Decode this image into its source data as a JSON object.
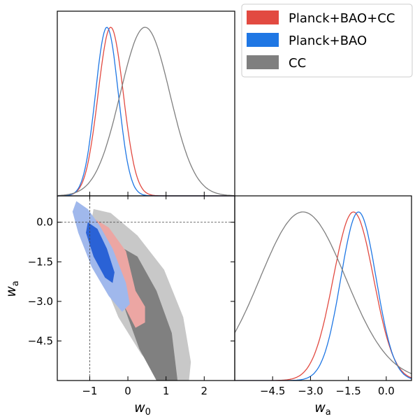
{
  "chart_data": {
    "type": "triangle-corner-plot",
    "legend": {
      "placement": "top-right",
      "entries": [
        {
          "name": "Planck+BAO+CC",
          "color": "#e24a41"
        },
        {
          "name": "Planck+BAO",
          "color": "#1f77e4"
        },
        {
          "name": "CC",
          "color": "#7f7f7f"
        }
      ]
    },
    "parameters": {
      "w0": {
        "label": "w",
        "sub": "0",
        "range": [
          -1.85,
          2.8
        ],
        "ticks": [
          -1,
          0,
          1,
          2
        ],
        "tick_labels": [
          "−1",
          "0",
          "1",
          "2"
        ]
      },
      "wa": {
        "label": "w",
        "sub": "a",
        "range": [
          -6.0,
          1.0
        ],
        "ticks": [
          0.0,
          -1.5,
          -3.0,
          -4.5
        ],
        "tick_labels": [
          "0.0",
          "−1.5",
          "−3.0",
          "−4.5"
        ]
      }
    },
    "reference_lines": {
      "w0": -1,
      "wa": 0
    },
    "marginals": {
      "w0": [
        {
          "series": "Planck+BAO+CC",
          "mean": -0.45,
          "sigma": 0.33
        },
        {
          "series": "Planck+BAO",
          "mean": -0.55,
          "sigma": 0.3
        },
        {
          "series": "CC",
          "mean": 0.45,
          "sigma": 0.65
        }
      ],
      "wa": [
        {
          "series": "Planck+BAO+CC",
          "mean": -1.3,
          "sigma": 0.8
        },
        {
          "series": "Planck+BAO",
          "mean": -1.1,
          "sigma": 0.7
        },
        {
          "series": "CC",
          "mean": -3.3,
          "sigma": 1.7
        }
      ]
    },
    "contours": [
      {
        "series": "CC",
        "level": "95%",
        "points": [
          [
            -0.9,
            0.5
          ],
          [
            -0.45,
            0.35
          ],
          [
            0.25,
            -0.5
          ],
          [
            0.95,
            -1.8
          ],
          [
            1.45,
            -3.6
          ],
          [
            1.65,
            -5.3
          ],
          [
            1.6,
            -6.0
          ],
          [
            0.95,
            -6.0
          ],
          [
            0.35,
            -5.0
          ],
          [
            -0.25,
            -3.6
          ],
          [
            -0.7,
            -2.0
          ],
          [
            -1.0,
            -0.3
          ]
        ]
      },
      {
        "series": "CC",
        "level": "68%",
        "points": [
          [
            -0.35,
            -0.8
          ],
          [
            0.25,
            -1.3
          ],
          [
            0.75,
            -2.6
          ],
          [
            1.15,
            -4.2
          ],
          [
            1.3,
            -6.0
          ],
          [
            0.75,
            -6.0
          ],
          [
            0.3,
            -4.8
          ],
          [
            -0.05,
            -3.4
          ],
          [
            -0.35,
            -2.0
          ],
          [
            -0.45,
            -1.1
          ]
        ]
      },
      {
        "series": "Planck+BAO+CC",
        "level": "95%",
        "points": [
          [
            -1.35,
            0.7
          ],
          [
            -0.95,
            0.2
          ],
          [
            -0.5,
            -0.2
          ],
          [
            -0.05,
            -1.1
          ],
          [
            0.2,
            -2.6
          ],
          [
            0.45,
            -3.2
          ],
          [
            0.45,
            -3.8
          ],
          [
            0.2,
            -4.0
          ],
          [
            -0.05,
            -3.3
          ],
          [
            -0.6,
            -2.2
          ],
          [
            -1.05,
            -1.2
          ],
          [
            -1.35,
            0.0
          ]
        ]
      },
      {
        "series": "Planck+BAO",
        "level": "95%",
        "points": [
          [
            -1.35,
            0.8
          ],
          [
            -1.05,
            0.5
          ],
          [
            -0.75,
            -0.1
          ],
          [
            -0.4,
            -1.0
          ],
          [
            -0.05,
            -2.3
          ],
          [
            0.05,
            -3.1
          ],
          [
            -0.15,
            -3.4
          ],
          [
            -0.5,
            -2.8
          ],
          [
            -0.95,
            -1.7
          ],
          [
            -1.3,
            -0.4
          ],
          [
            -1.45,
            0.4
          ]
        ]
      },
      {
        "series": "Planck+BAO",
        "level": "68%",
        "points": [
          [
            -1.05,
            0.0
          ],
          [
            -0.8,
            -0.25
          ],
          [
            -0.55,
            -1.0
          ],
          [
            -0.35,
            -1.9
          ],
          [
            -0.4,
            -2.3
          ],
          [
            -0.6,
            -2.1
          ],
          [
            -0.9,
            -1.3
          ],
          [
            -1.1,
            -0.4
          ]
        ]
      }
    ],
    "contour_fills": {
      "CC": {
        "95%": "#c8c8c8",
        "68%": "#808080"
      },
      "Planck+BAO+CC": {
        "95%": "#eca6a3",
        "68%": "#e06b66"
      },
      "Planck+BAO": {
        "95%": "#a0b8ec",
        "68%": "#2a62d6"
      }
    }
  }
}
